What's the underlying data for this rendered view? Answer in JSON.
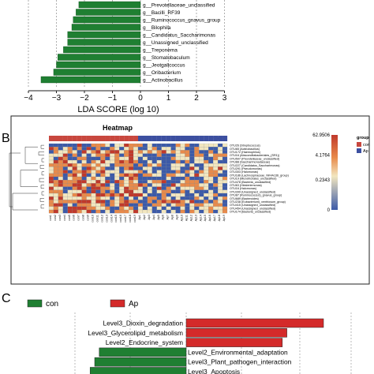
{
  "panels": {
    "b_letter": "B",
    "c_letter": "C"
  },
  "chart_data": [
    {
      "type": "bar",
      "panel": "A",
      "orientation": "horizontal",
      "xlabel": "LDA SCORE (log 10)",
      "xlim": [
        -4,
        4
      ],
      "xticks": [
        -4,
        -3,
        -2,
        -1,
        0,
        1,
        2,
        3
      ],
      "grid": true,
      "color": "#1f7f32",
      "categories": [
        "g__Prevotellaceae_unclassified",
        "g__Bacilli_RF39",
        "g__Ruminococcus_gnavus_group",
        "g__Bilophila",
        "g__Candidatus_Saccharimonas",
        "g__Unassigned_unclassified",
        "g__Treponema",
        "g__Stomatobaculum",
        "g__Jeotgalicoccus",
        "g__Oribacterium",
        "g__Actinobacillus"
      ],
      "values": [
        -2.2,
        -2.3,
        -2.4,
        -2.45,
        -2.6,
        -2.6,
        -2.75,
        -2.95,
        -3.0,
        -3.1,
        -3.55
      ]
    },
    {
      "type": "heatmap",
      "panel": "B",
      "title": "Heatmap",
      "group_label": "group",
      "legend": {
        "title": "group",
        "entries": [
          {
            "name": "con",
            "color": "#c8473e"
          },
          {
            "name": "Ap",
            "color": "#3c4fa0"
          }
        ]
      },
      "colorbar_ticks": [
        "62.9506",
        "4.1764",
        "0.2343",
        "0"
      ],
      "colorscale": [
        "#3c5aa8",
        "#f2e6bf",
        "#e88a4a",
        "#c0392b"
      ],
      "rows": [
        "OTU26 (Streptococcus)",
        "OTU65 (Actinobacillus)",
        "OTU172 (Haemophilus)",
        "OTU16 (Absconditabacteriales_(SR1))",
        "OTU507 (Prevotellaceae_unclassified)",
        "OTU88 (Saccharimonadaceae)",
        "OTU227 (Candidatus_Saccharimonas)",
        "OTU291 (Pseudomonas)",
        "OTU303 (Halomonas)",
        "OTU186 (Lachnospiraceae_NK4A136_group)",
        "OTU19 (Microtrichales_unclassified)",
        "OTU478 (Bacteria_unclassified)",
        "OTU63 (Hiesleriemonas)",
        "OTU16 (Halomonas)",
        "OTU399 (Unassigned_unclassified)",
        "OTU87 (Ruminococcus)_gnavus_group)",
        "OTU689 (Bacteroides)",
        "OTU238 (Eubacterium)_ventriosum_group)",
        "OTU415 (Unassigned_unclassified)",
        "OTU454 (Unassigned_unclassified)",
        "OTU174 (Bacteria_unclassified)"
      ],
      "column_groups": {
        "con": 19,
        "Ap": 19
      },
      "n_columns": 38
    },
    {
      "type": "bar",
      "panel": "C",
      "orientation": "diverging",
      "legend": [
        {
          "name": "con",
          "color": "#1f7f32"
        },
        {
          "name": "Ap",
          "color": "#d42a2a"
        }
      ],
      "bars": [
        {
          "label": "Level3_Dioxin_degradation",
          "value": 3.0,
          "group": "Ap"
        },
        {
          "label": "Level3_Glycerolipid_metabolism",
          "value": 2.2,
          "group": "Ap"
        },
        {
          "label": "Level2_Endocrine_system",
          "value": 2.1,
          "group": "Ap"
        },
        {
          "label": "Level2_Environmental_adaptation",
          "value": -1.9,
          "group": "con"
        },
        {
          "label": "Level3_Plant_pathogen_interaction",
          "value": -2.0,
          "group": "con"
        },
        {
          "label": "Level3_Apoptosis",
          "value": -2.1,
          "group": "con"
        }
      ]
    }
  ]
}
